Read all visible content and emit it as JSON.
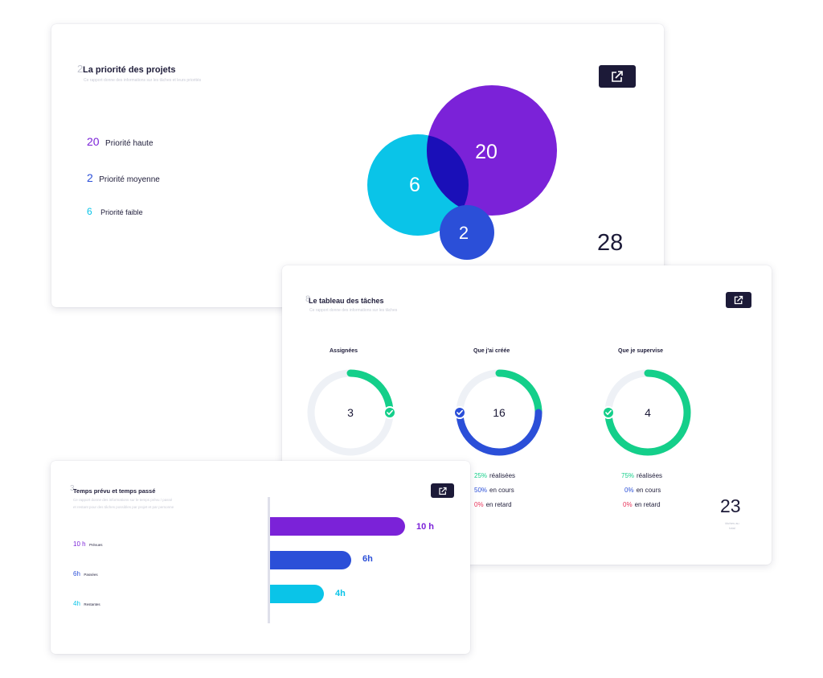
{
  "colors": {
    "purple": "#7b22d8",
    "blue": "#2b4fd8",
    "cyan": "#0ac4e8",
    "green": "#14cf8a",
    "red": "#e8345a",
    "dark": "#1c1a38",
    "track": "#eef1f6"
  },
  "card1": {
    "index": "2",
    "title": "La priorité des projets",
    "subtitle": "Ce rapport donne des informations sur les tâches et leurs priorités",
    "share_icon": "share-icon",
    "legend": [
      {
        "value": "20",
        "label": "Priorité haute"
      },
      {
        "value": "2",
        "label": "Priorité moyenne"
      },
      {
        "value": "6",
        "label": "Priorité faible"
      }
    ],
    "bubbles": {
      "high": "20",
      "medium": "2",
      "low": "6"
    },
    "total": "28"
  },
  "card2": {
    "index": "8",
    "title": "Le tableau des tâches",
    "subtitle": "Ce rapport donne des informations sur les tâches",
    "share_icon": "share-icon",
    "donuts": [
      {
        "label": "Assignées",
        "value": "3",
        "done": 0.25,
        "in_progress": 0
      },
      {
        "label": "Que j'ai créée",
        "value": "16",
        "done": 0.25,
        "in_progress": 0.5
      },
      {
        "label": "Que je supervise",
        "value": "4",
        "done": 0.75,
        "in_progress": 0
      }
    ],
    "stats": [
      [],
      [
        {
          "pct": "25%",
          "label": "réalisées"
        },
        {
          "pct": "50%",
          "label": "en cours"
        },
        {
          "pct": "0%",
          "label": "en retard"
        }
      ],
      [
        {
          "pct": "75%",
          "label": "réalisées"
        },
        {
          "pct": "0%",
          "label": "en cours"
        },
        {
          "pct": "0%",
          "label": "en retard"
        }
      ]
    ],
    "total": "23",
    "total_caption": "tâches au total"
  },
  "card3": {
    "index": "3",
    "title": "Temps prévu et temps passé",
    "subtitle_line1": "Ce rapport donne des informations sur le temps prévu / passé",
    "subtitle_line2": "et restant pour des tâches possibles par projet et par personne",
    "share_icon": "share-icon",
    "legend": [
      {
        "value": "10 h",
        "label": "Prévues"
      },
      {
        "value": "6h",
        "label": "Passées"
      },
      {
        "value": "4h",
        "label": "Restantes"
      }
    ],
    "bars": [
      {
        "value": 10,
        "label": "10 h"
      },
      {
        "value": 6,
        "label": "6h"
      },
      {
        "value": 4,
        "label": "4h"
      }
    ],
    "max": 10
  }
}
